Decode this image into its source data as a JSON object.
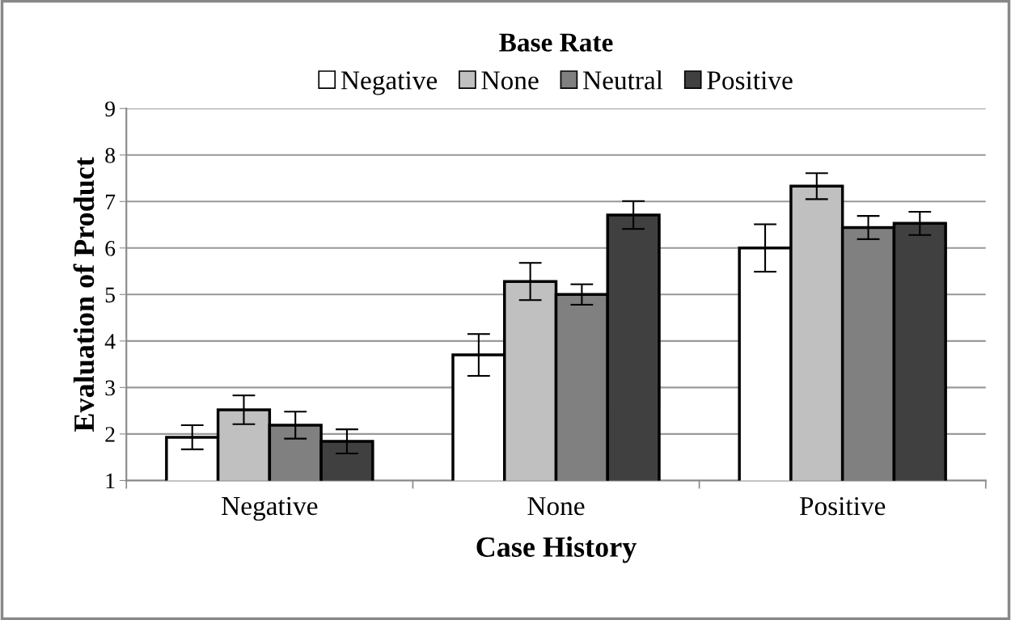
{
  "chart_data": {
    "type": "bar",
    "xlabel": "Case History",
    "ylabel": "Evaluation of Product",
    "legend_title": "Base Rate",
    "categories": [
      "Negative",
      "None",
      "Positive"
    ],
    "series": [
      {
        "name": "Negative",
        "color": "#ffffff",
        "values": [
          1.93,
          3.7,
          6.0
        ],
        "errors": [
          0.26,
          0.45,
          0.51
        ]
      },
      {
        "name": "None",
        "color": "#c0c0c0",
        "values": [
          2.52,
          5.28,
          7.33
        ],
        "errors": [
          0.31,
          0.4,
          0.28
        ]
      },
      {
        "name": "Neutral",
        "color": "#808080",
        "values": [
          2.19,
          5.0,
          6.44
        ],
        "errors": [
          0.29,
          0.22,
          0.25
        ]
      },
      {
        "name": "Positive",
        "color": "#404040",
        "values": [
          1.84,
          6.71,
          6.53
        ],
        "errors": [
          0.26,
          0.3,
          0.25
        ]
      }
    ],
    "ylim": [
      1,
      9
    ],
    "yticks": [
      1,
      2,
      3,
      4,
      5,
      6,
      7,
      8,
      9
    ],
    "grid": "y",
    "legend": "top"
  }
}
